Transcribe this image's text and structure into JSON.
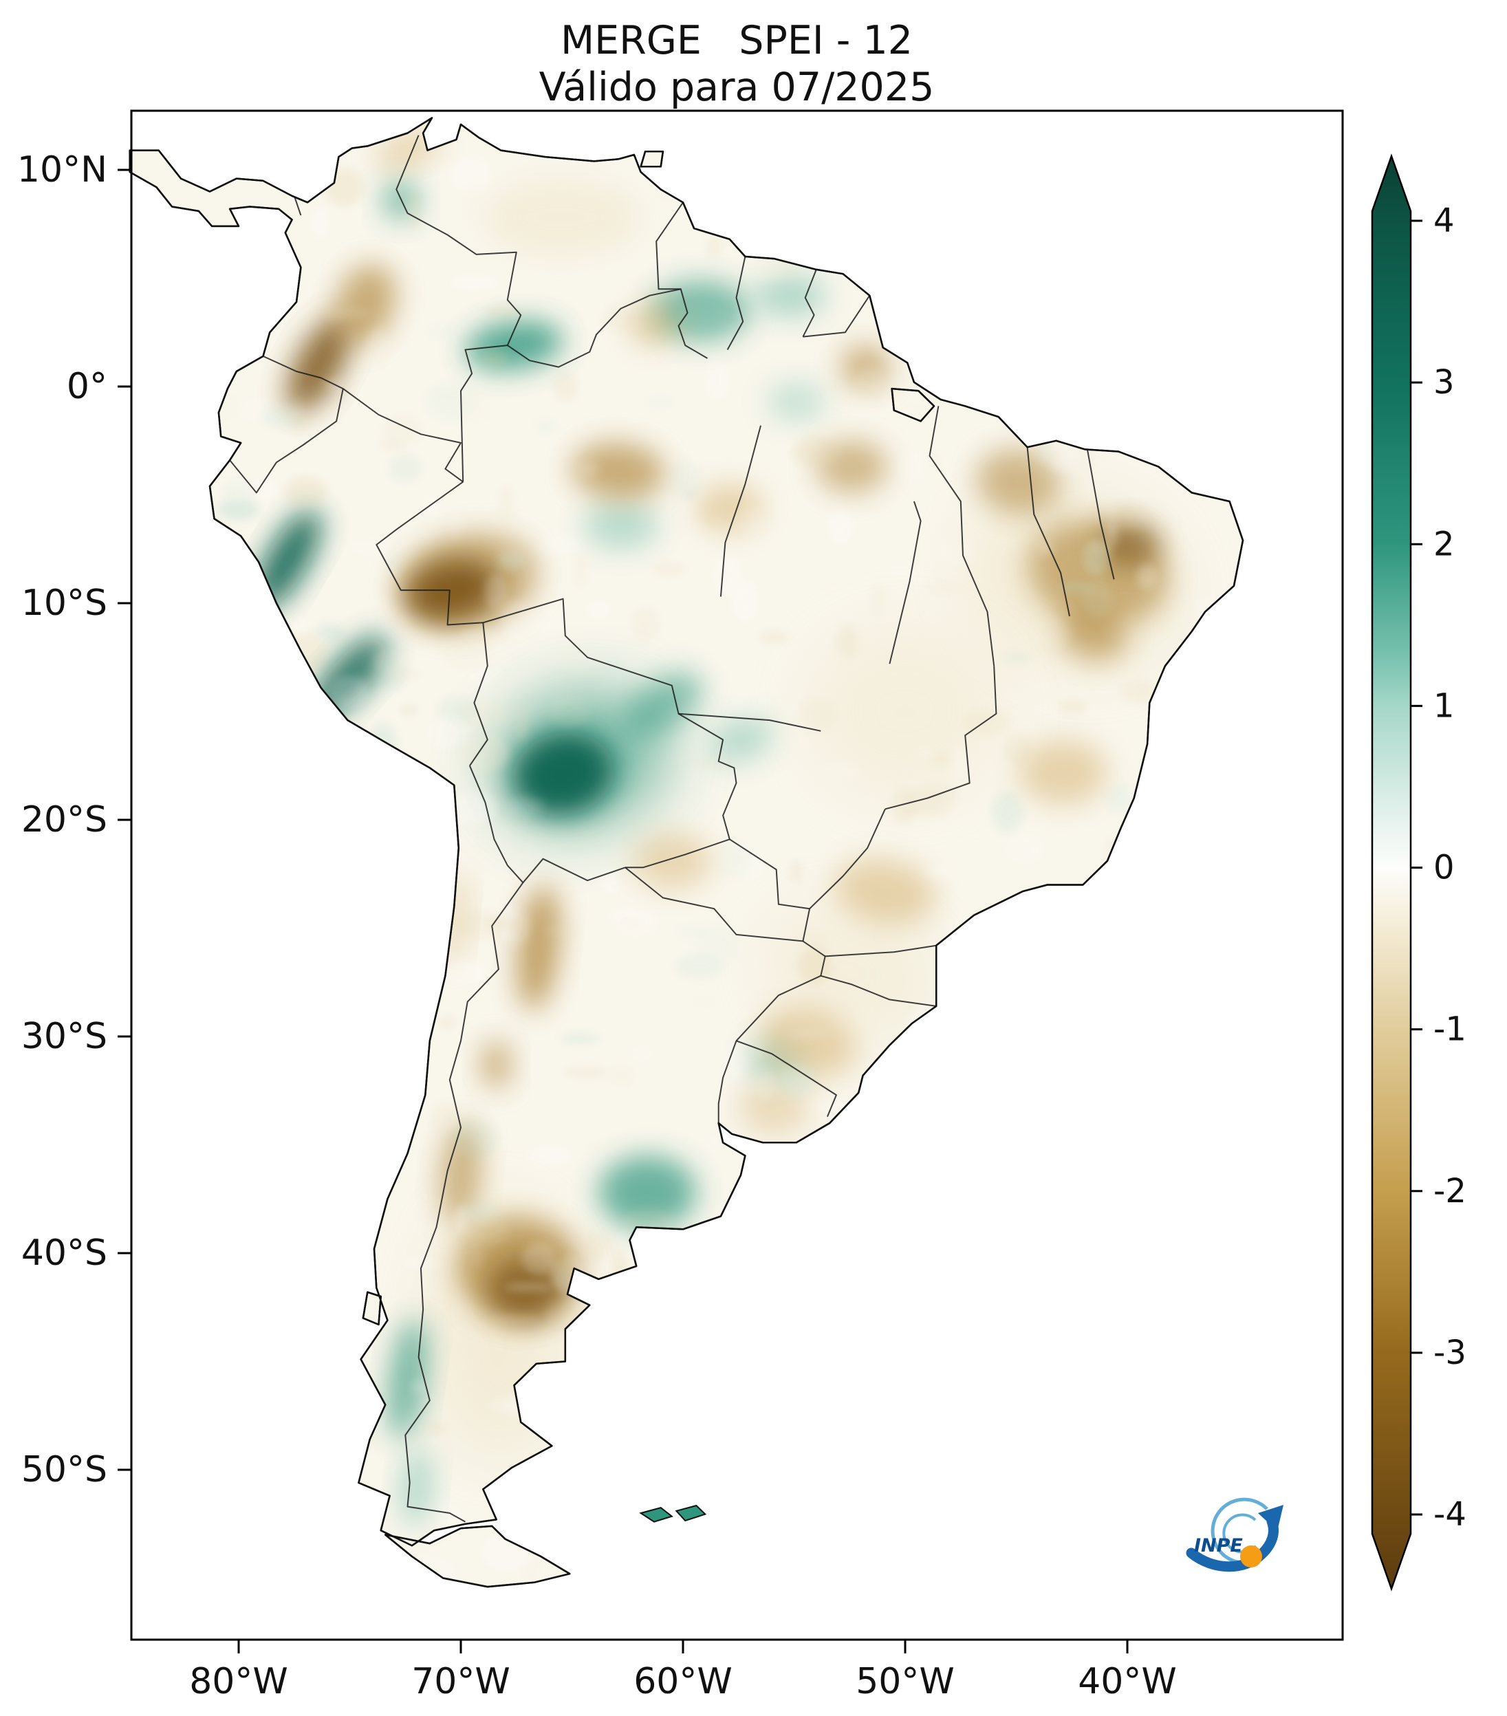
{
  "title": {
    "line1": "MERGE   SPEI - 12",
    "line2": "Válido para 07/2025"
  },
  "axes": {
    "y_ticks": [
      {
        "label": "10°N",
        "lat": 10
      },
      {
        "label": "0°",
        "lat": 0
      },
      {
        "label": "10°S",
        "lat": -10
      },
      {
        "label": "20°S",
        "lat": -20
      },
      {
        "label": "30°S",
        "lat": -30
      },
      {
        "label": "40°S",
        "lat": -40
      },
      {
        "label": "50°S",
        "lat": -50
      }
    ],
    "x_ticks": [
      {
        "label": "80°W",
        "lon": -80
      },
      {
        "label": "70°W",
        "lon": -70
      },
      {
        "label": "60°W",
        "lon": -60
      },
      {
        "label": "50°W",
        "lon": -50
      },
      {
        "label": "40°W",
        "lon": -40
      }
    ]
  },
  "colorbar": {
    "min": -4,
    "max": 4,
    "tick_labels": [
      "4",
      "3",
      "2",
      "1",
      "0",
      "-1",
      "-2",
      "-3",
      "-4"
    ],
    "tick_values": [
      4,
      3,
      2,
      1,
      0,
      -1,
      -2,
      -3,
      -4
    ],
    "gradient": [
      {
        "v": 4.4,
        "c": "#0a3f33"
      },
      {
        "v": 4.0,
        "c": "#0d5444"
      },
      {
        "v": 3.0,
        "c": "#11725e"
      },
      {
        "v": 2.0,
        "c": "#2f967e"
      },
      {
        "v": 1.3,
        "c": "#79c2af"
      },
      {
        "v": 1.0,
        "c": "#a5d7c8"
      },
      {
        "v": 0.4,
        "c": "#ddeee8"
      },
      {
        "v": 0.0,
        "c": "#fdfdfb"
      },
      {
        "v": -0.4,
        "c": "#f3ead2"
      },
      {
        "v": -1.0,
        "c": "#e1cd9c"
      },
      {
        "v": -2.0,
        "c": "#c59e4e"
      },
      {
        "v": -3.0,
        "c": "#966a1e"
      },
      {
        "v": -4.0,
        "c": "#6f4b13"
      },
      {
        "v": -4.4,
        "c": "#5e3d0f"
      }
    ]
  },
  "logo": {
    "label": "INPE"
  },
  "chart_data": {
    "type": "heatmap",
    "title": "MERGE   SPEI - 12",
    "subtitle": "Válido para 07/2025",
    "index": "SPEI-12",
    "valid_for": "07/2025",
    "region": "South America",
    "colorbar_range": [
      -4,
      4
    ],
    "colorbar_ticks": [
      4,
      3,
      2,
      1,
      0,
      -1,
      -2,
      -3,
      -4
    ],
    "palette": "diverging brown (dry, negative) to white (0) to teal (wet, positive)",
    "x_axis": {
      "ticks": [
        "80°W",
        "70°W",
        "60°W",
        "50°W",
        "40°W"
      ]
    },
    "y_axis": {
      "ticks": [
        "10°N",
        "0°",
        "10°S",
        "20°S",
        "30°S",
        "40°S",
        "50°S"
      ]
    },
    "anomaly_regions": [
      {
        "name": "wash-northeast-brazil",
        "lon": -42.5,
        "lat": -9.0,
        "spei": -0.6,
        "rx": 5.0,
        "ry": 4.0,
        "rot": 20,
        "op": 0.3
      },
      {
        "name": "wash-central-brazil",
        "lon": -50.0,
        "lat": -15.0,
        "spei": -0.5,
        "rx": 4.5,
        "ry": 4.0,
        "rot": 0,
        "op": 0.22
      },
      {
        "name": "wash-patagonia",
        "lon": -68.3,
        "lat": -43.5,
        "spei": -0.7,
        "rx": 3.2,
        "ry": 6.0,
        "rot": 0,
        "op": 0.3
      },
      {
        "name": "wash-venezuela-llanos",
        "lon": -65.5,
        "lat": 7.8,
        "spei": -0.6,
        "rx": 3.5,
        "ry": 1.8,
        "rot": 0,
        "op": 0.26
      },
      {
        "name": "wash-south-brazil",
        "lon": -52.5,
        "lat": -27.0,
        "spei": -0.6,
        "rx": 4.0,
        "ry": 3.0,
        "rot": 15,
        "op": 0.24
      },
      {
        "name": "peru-coast-north",
        "lon": -77.8,
        "lat": -8.0,
        "spei": 3.0,
        "rx": 0.9,
        "ry": 2.6,
        "rot": 30,
        "op": 0.9
      },
      {
        "name": "peru-coast-south",
        "lon": -75.0,
        "lat": -13.4,
        "spei": 2.8,
        "rx": 0.9,
        "ry": 2.4,
        "rot": 42,
        "op": 0.85
      },
      {
        "name": "bolivia-halo",
        "lon": -64.6,
        "lat": -17.2,
        "spei": 1.6,
        "rx": 3.9,
        "ry": 3.1,
        "rot": -15,
        "op": 0.65
      },
      {
        "name": "bolivia-core",
        "lon": -65.4,
        "lat": -17.9,
        "spei": 3.4,
        "rx": 2.3,
        "ry": 1.9,
        "rot": -12,
        "op": 0.95
      },
      {
        "name": "bolivia-east-arm",
        "lon": -60.9,
        "lat": -14.7,
        "spei": 1.5,
        "rx": 2.0,
        "ry": 1.1,
        "rot": -35,
        "op": 0.55
      },
      {
        "name": "nw-amazon",
        "lon": -67.6,
        "lat": 1.9,
        "spei": 2.2,
        "rx": 2.2,
        "ry": 1.1,
        "rot": -8,
        "op": 0.8
      },
      {
        "name": "guyana",
        "lon": -59.2,
        "lat": 3.5,
        "spei": 1.5,
        "rx": 2.2,
        "ry": 1.4,
        "rot": 0,
        "op": 0.6
      },
      {
        "name": "suriname",
        "lon": -55.2,
        "lat": 4.2,
        "spei": 1.1,
        "rx": 1.6,
        "ry": 1.0,
        "rot": 0,
        "op": 0.5
      },
      {
        "name": "central-amazonas-teal",
        "lon": -62.8,
        "lat": -6.4,
        "spei": 1.2,
        "rx": 1.7,
        "ry": 1.1,
        "rot": 0,
        "op": 0.45
      },
      {
        "name": "catatumbo",
        "lon": -72.7,
        "lat": 8.6,
        "spei": 1.6,
        "rx": 0.8,
        "ry": 0.9,
        "rot": 0,
        "op": 0.6
      },
      {
        "name": "mato-grosso-teal",
        "lon": -57.4,
        "lat": -16.3,
        "spei": 1.3,
        "rx": 1.5,
        "ry": 1.0,
        "rot": -20,
        "op": 0.45
      },
      {
        "name": "pampas-teal",
        "lon": -61.6,
        "lat": -37.2,
        "spei": 1.7,
        "rx": 2.2,
        "ry": 1.7,
        "rot": 0,
        "op": 0.7
      },
      {
        "name": "misiones-teal",
        "lon": -55.9,
        "lat": -31.1,
        "spei": 1.1,
        "rx": 1.2,
        "ry": 1.0,
        "rot": 0,
        "op": 0.45
      },
      {
        "name": "south-chile",
        "lon": -72.4,
        "lat": -45.8,
        "spei": 1.5,
        "rx": 0.8,
        "ry": 2.8,
        "rot": 8,
        "op": 0.65
      },
      {
        "name": "patagonia-andes-teal",
        "lon": -72.0,
        "lat": -50.8,
        "spei": 1.1,
        "rx": 0.7,
        "ry": 1.8,
        "rot": 5,
        "op": 0.5
      },
      {
        "name": "para-ne-teal",
        "lon": -54.9,
        "lat": -0.7,
        "spei": 0.9,
        "rx": 1.3,
        "ry": 0.9,
        "rot": 0,
        "op": 0.35
      },
      {
        "name": "colombia-andes",
        "lon": -76.4,
        "lat": 1.0,
        "spei": -3.0,
        "rx": 1.0,
        "ry": 2.4,
        "rot": 28,
        "op": 0.85
      },
      {
        "name": "colombia-east",
        "lon": -74.3,
        "lat": 3.8,
        "spei": -1.9,
        "rx": 1.3,
        "ry": 1.9,
        "rot": 20,
        "op": 0.6
      },
      {
        "name": "guajira",
        "lon": -72.4,
        "lat": 10.9,
        "spei": -1.0,
        "rx": 1.5,
        "ry": 0.7,
        "rot": -20,
        "op": 0.45
      },
      {
        "name": "acre-halo",
        "lon": -69.7,
        "lat": -9.0,
        "spei": -1.7,
        "rx": 3.2,
        "ry": 2.2,
        "rot": -12,
        "op": 0.55
      },
      {
        "name": "acre-core",
        "lon": -70.4,
        "lat": -9.4,
        "spei": -3.2,
        "rx": 2.1,
        "ry": 1.4,
        "rot": -12,
        "op": 0.9
      },
      {
        "name": "central-amazon-brown",
        "lon": -62.9,
        "lat": -3.9,
        "spei": -1.9,
        "rx": 2.1,
        "ry": 1.3,
        "rot": 5,
        "op": 0.6
      },
      {
        "name": "tapajos",
        "lon": -57.9,
        "lat": -5.6,
        "spei": -1.3,
        "rx": 1.5,
        "ry": 1.1,
        "rot": 0,
        "op": 0.45
      },
      {
        "name": "para-east",
        "lon": -52.4,
        "lat": -3.7,
        "spei": -1.5,
        "rx": 1.6,
        "ry": 1.2,
        "rot": 0,
        "op": 0.5
      },
      {
        "name": "amapa",
        "lon": -51.8,
        "lat": 0.9,
        "spei": -1.7,
        "rx": 1.1,
        "ry": 1.0,
        "rot": 0,
        "op": 0.55
      },
      {
        "name": "roraima",
        "lon": -61.3,
        "lat": 2.9,
        "spei": -1.1,
        "rx": 1.2,
        "ry": 1.0,
        "rot": 0,
        "op": 0.45
      },
      {
        "name": "maranhao",
        "lon": -44.9,
        "lat": -4.4,
        "spei": -1.5,
        "rx": 1.9,
        "ry": 1.5,
        "rot": 10,
        "op": 0.5
      },
      {
        "name": "sertao",
        "lon": -41.3,
        "lat": -8.6,
        "spei": -1.7,
        "rx": 3.2,
        "ry": 2.4,
        "rot": 12,
        "op": 0.55
      },
      {
        "name": "sertao-core",
        "lon": -39.9,
        "lat": -7.3,
        "spei": -2.6,
        "rx": 1.4,
        "ry": 1.0,
        "rot": 0,
        "op": 0.65
      },
      {
        "name": "bahia",
        "lon": -41.6,
        "lat": -11.4,
        "spei": -2.1,
        "rx": 1.6,
        "ry": 1.2,
        "rot": 20,
        "op": 0.55
      },
      {
        "name": "minas",
        "lon": -42.9,
        "lat": -17.8,
        "spei": -1.1,
        "rx": 2.0,
        "ry": 1.5,
        "rot": 0,
        "op": 0.45
      },
      {
        "name": "sp-parana",
        "lon": -50.9,
        "lat": -23.3,
        "spei": -1.2,
        "rx": 2.3,
        "ry": 1.5,
        "rot": 10,
        "op": 0.45
      },
      {
        "name": "rio-grande-sul",
        "lon": -54.4,
        "lat": -30.3,
        "spei": -1.2,
        "rx": 2.2,
        "ry": 1.6,
        "rot": 15,
        "op": 0.45
      },
      {
        "name": "uruguay",
        "lon": -55.9,
        "lat": -33.3,
        "spei": -0.9,
        "rx": 1.6,
        "ry": 1.2,
        "rot": 0,
        "op": 0.35
      },
      {
        "name": "chaco",
        "lon": -60.5,
        "lat": -21.9,
        "spei": -1.0,
        "rx": 1.8,
        "ry": 1.3,
        "rot": 0,
        "op": 0.4
      },
      {
        "name": "nw-argentina",
        "lon": -66.5,
        "lat": -25.9,
        "spei": -2.1,
        "rx": 0.9,
        "ry": 2.9,
        "rot": 6,
        "op": 0.7
      },
      {
        "name": "cuyo",
        "lon": -68.4,
        "lat": -31.3,
        "spei": -2.3,
        "rx": 0.7,
        "ry": 1.1,
        "rot": 0,
        "op": 0.55
      },
      {
        "name": "north-patagonia",
        "lon": -67.4,
        "lat": -40.7,
        "spei": -2.1,
        "rx": 2.8,
        "ry": 2.4,
        "rot": 0,
        "op": 0.65
      },
      {
        "name": "north-patagonia-core",
        "lon": -67.1,
        "lat": -41.7,
        "spei": -3.0,
        "rx": 1.7,
        "ry": 1.5,
        "rot": 0,
        "op": 0.75
      },
      {
        "name": "neuquen-andes",
        "lon": -70.0,
        "lat": -36.3,
        "spei": -1.7,
        "rx": 0.9,
        "ry": 2.4,
        "rot": 5,
        "op": 0.55
      },
      {
        "name": "atacama",
        "lon": -70.2,
        "lat": -24.6,
        "spei": -0.8,
        "rx": 0.5,
        "ry": 2.2,
        "rot": 5,
        "op": 0.35
      },
      {
        "name": "islas-malvinas",
        "lon": -60.5,
        "lat": -52.0,
        "spei": 2.0,
        "rx": 0.0,
        "ry": 0.0,
        "rot": 0,
        "op": 1.0
      }
    ]
  }
}
